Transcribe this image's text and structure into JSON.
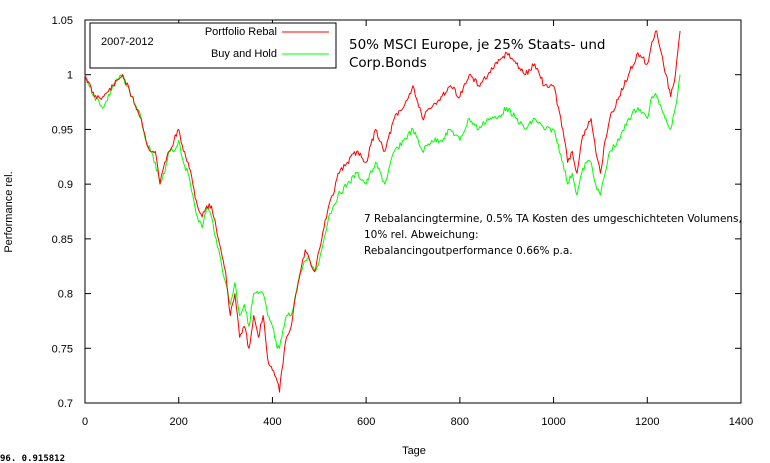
{
  "chart_data": {
    "type": "line",
    "xlabel": "Tage",
    "ylabel": "Performance rel.",
    "xlim": [
      0,
      1400
    ],
    "ylim": [
      0.7,
      1.05
    ],
    "xticks": [
      0,
      200,
      400,
      600,
      800,
      1000,
      1200,
      1400
    ],
    "yticks": [
      0.7,
      0.75,
      0.8,
      0.85,
      0.9,
      0.95,
      1,
      1.05
    ],
    "xtick_labels": [
      "0",
      "200",
      "400",
      "600",
      "800",
      "1000",
      "1200",
      "1400"
    ],
    "ytick_labels": [
      "0.7",
      "0.75",
      "0.8",
      "0.85",
      "0.9",
      "0.95",
      "1",
      "1.05"
    ],
    "legend": {
      "period": "2007-2012",
      "placement": "top-left",
      "entries": [
        "Portfolio Rebal",
        "Buy and Hold"
      ]
    },
    "title": "50% MSCI Europe, je 25% Staats- und",
    "title_line2": "Corp.Bonds",
    "annotation": [
      "7 Rebalancingtermine, 0.5% TA Kosten des umgeschichteten Volumens,",
      "10% rel. Abweichung:",
      "Rebalancingoutperformance 0.66% p.a."
    ],
    "coordinate_readout": "96.  0.915812",
    "series": [
      {
        "name": "Portfolio Rebal",
        "color": "#ff0000",
        "x": [
          0,
          20,
          40,
          60,
          80,
          100,
          120,
          130,
          140,
          150,
          160,
          170,
          180,
          190,
          200,
          210,
          220,
          230,
          240,
          250,
          260,
          270,
          280,
          290,
          300,
          310,
          320,
          330,
          340,
          350,
          360,
          370,
          380,
          390,
          400,
          410,
          415,
          420,
          430,
          440,
          450,
          460,
          470,
          480,
          490,
          500,
          510,
          520,
          530,
          540,
          560,
          580,
          600,
          620,
          640,
          660,
          680,
          700,
          720,
          740,
          760,
          780,
          800,
          820,
          840,
          860,
          880,
          900,
          920,
          940,
          960,
          980,
          1000,
          1020,
          1030,
          1040,
          1050,
          1060,
          1070,
          1080,
          1090,
          1100,
          1110,
          1120,
          1140,
          1160,
          1180,
          1200,
          1210,
          1220,
          1230,
          1240,
          1250,
          1260,
          1270
        ],
        "values": [
          1.0,
          0.98,
          0.98,
          0.99,
          1.0,
          0.98,
          0.96,
          0.94,
          0.93,
          0.93,
          0.9,
          0.92,
          0.93,
          0.94,
          0.95,
          0.93,
          0.92,
          0.9,
          0.88,
          0.87,
          0.88,
          0.88,
          0.86,
          0.84,
          0.82,
          0.78,
          0.8,
          0.76,
          0.77,
          0.75,
          0.78,
          0.76,
          0.78,
          0.74,
          0.73,
          0.72,
          0.71,
          0.73,
          0.76,
          0.77,
          0.8,
          0.82,
          0.84,
          0.83,
          0.82,
          0.84,
          0.86,
          0.88,
          0.89,
          0.91,
          0.92,
          0.93,
          0.92,
          0.95,
          0.93,
          0.96,
          0.97,
          0.99,
          0.96,
          0.97,
          0.98,
          0.99,
          0.98,
          1.0,
          0.99,
          1.0,
          1.01,
          1.02,
          1.01,
          1.0,
          1.01,
          0.99,
          0.99,
          0.95,
          0.92,
          0.93,
          0.91,
          0.94,
          0.95,
          0.96,
          0.93,
          0.91,
          0.94,
          0.96,
          0.98,
          1.0,
          1.02,
          1.01,
          1.03,
          1.04,
          1.02,
          1.0,
          0.98,
          1.0,
          1.04
        ]
      },
      {
        "name": "Buy and Hold",
        "color": "#00ff00",
        "x": [
          0,
          20,
          40,
          60,
          80,
          100,
          120,
          130,
          140,
          150,
          160,
          170,
          180,
          190,
          200,
          210,
          220,
          230,
          240,
          250,
          260,
          270,
          280,
          290,
          300,
          310,
          320,
          330,
          340,
          350,
          360,
          370,
          380,
          390,
          400,
          410,
          415,
          420,
          430,
          440,
          450,
          460,
          470,
          480,
          490,
          500,
          510,
          520,
          530,
          540,
          560,
          580,
          600,
          620,
          640,
          660,
          680,
          700,
          720,
          740,
          760,
          780,
          800,
          820,
          840,
          860,
          880,
          900,
          920,
          940,
          960,
          980,
          1000,
          1020,
          1030,
          1040,
          1050,
          1060,
          1070,
          1080,
          1090,
          1100,
          1110,
          1120,
          1140,
          1160,
          1180,
          1200,
          1210,
          1220,
          1230,
          1240,
          1250,
          1260,
          1270
        ],
        "values": [
          1.0,
          0.98,
          0.97,
          0.99,
          1.0,
          0.98,
          0.96,
          0.94,
          0.93,
          0.92,
          0.9,
          0.91,
          0.93,
          0.93,
          0.94,
          0.92,
          0.91,
          0.89,
          0.87,
          0.86,
          0.88,
          0.87,
          0.85,
          0.83,
          0.81,
          0.79,
          0.81,
          0.78,
          0.79,
          0.77,
          0.8,
          0.8,
          0.8,
          0.78,
          0.77,
          0.75,
          0.75,
          0.76,
          0.78,
          0.78,
          0.8,
          0.82,
          0.83,
          0.83,
          0.82,
          0.83,
          0.85,
          0.87,
          0.88,
          0.89,
          0.9,
          0.91,
          0.9,
          0.92,
          0.9,
          0.93,
          0.94,
          0.95,
          0.93,
          0.94,
          0.94,
          0.95,
          0.94,
          0.96,
          0.95,
          0.96,
          0.96,
          0.97,
          0.96,
          0.95,
          0.96,
          0.95,
          0.95,
          0.92,
          0.9,
          0.91,
          0.89,
          0.91,
          0.92,
          0.92,
          0.9,
          0.89,
          0.91,
          0.93,
          0.94,
          0.96,
          0.97,
          0.96,
          0.98,
          0.98,
          0.97,
          0.96,
          0.95,
          0.97,
          1.0
        ]
      }
    ]
  }
}
